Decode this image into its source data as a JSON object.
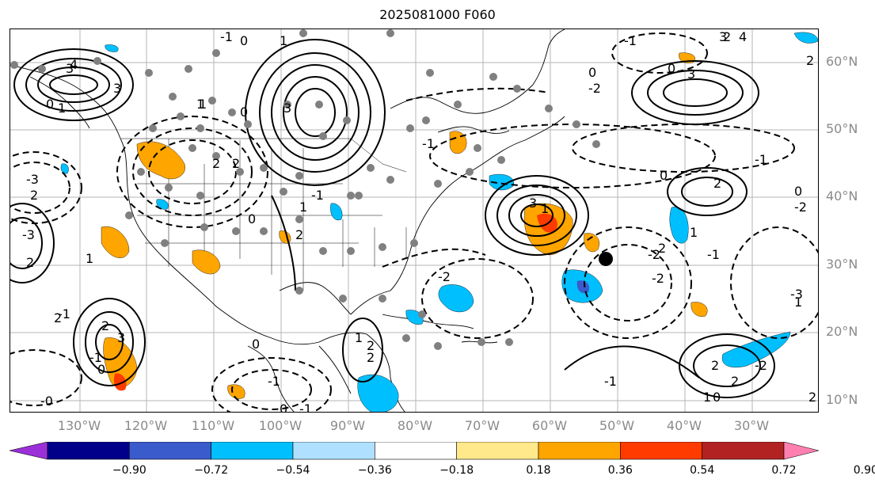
{
  "title": "2025081000 F060",
  "lat_labels": [
    "60°N",
    "50°N",
    "40°N",
    "30°N",
    "20°N",
    "10°N"
  ],
  "lon_labels": [
    "130°W",
    "120°W",
    "110°W",
    "100°W",
    "90°W",
    "80°W",
    "70°W",
    "60°W",
    "50°W",
    "40°W",
    "30°W"
  ],
  "colorbar": {
    "ticks": [
      "−0.90",
      "−0.72",
      "−0.54",
      "−0.36",
      "−0.18",
      "0.18",
      "0.36",
      "0.54",
      "0.72",
      "0.90"
    ],
    "colors": [
      "#9b30d9",
      "#00008b",
      "#3a5bcc",
      "#00bfff",
      "#b0e0ff",
      "#ffffff",
      "#ffe98a",
      "#ffa500",
      "#ff3b00",
      "#b22222",
      "#ff80b0"
    ]
  },
  "contour_labels": [
    "3",
    "4",
    "3",
    "0",
    "1",
    "0",
    "-1",
    "1",
    "-3",
    "2",
    "-3",
    "2",
    "1",
    "2",
    "3",
    "-1",
    "2",
    "0",
    "3",
    "1",
    "-1",
    "0",
    "-1",
    "0",
    "2",
    "1",
    "-2",
    "-2",
    "2",
    "-2",
    "-3",
    "1",
    "-0",
    "-1",
    "-2",
    "-1",
    "0",
    "2",
    "0",
    "-1",
    "2",
    "-1",
    "-2",
    "1",
    "2",
    "3",
    "4",
    "2",
    "0",
    "3",
    "0",
    "-2",
    "1",
    "2",
    "2",
    "1",
    "0",
    "-1",
    "2",
    "3",
    "2",
    "0",
    "1",
    "2",
    "1",
    "0",
    "2",
    "-1",
    "-1"
  ],
  "legend_marker_note": ""
}
